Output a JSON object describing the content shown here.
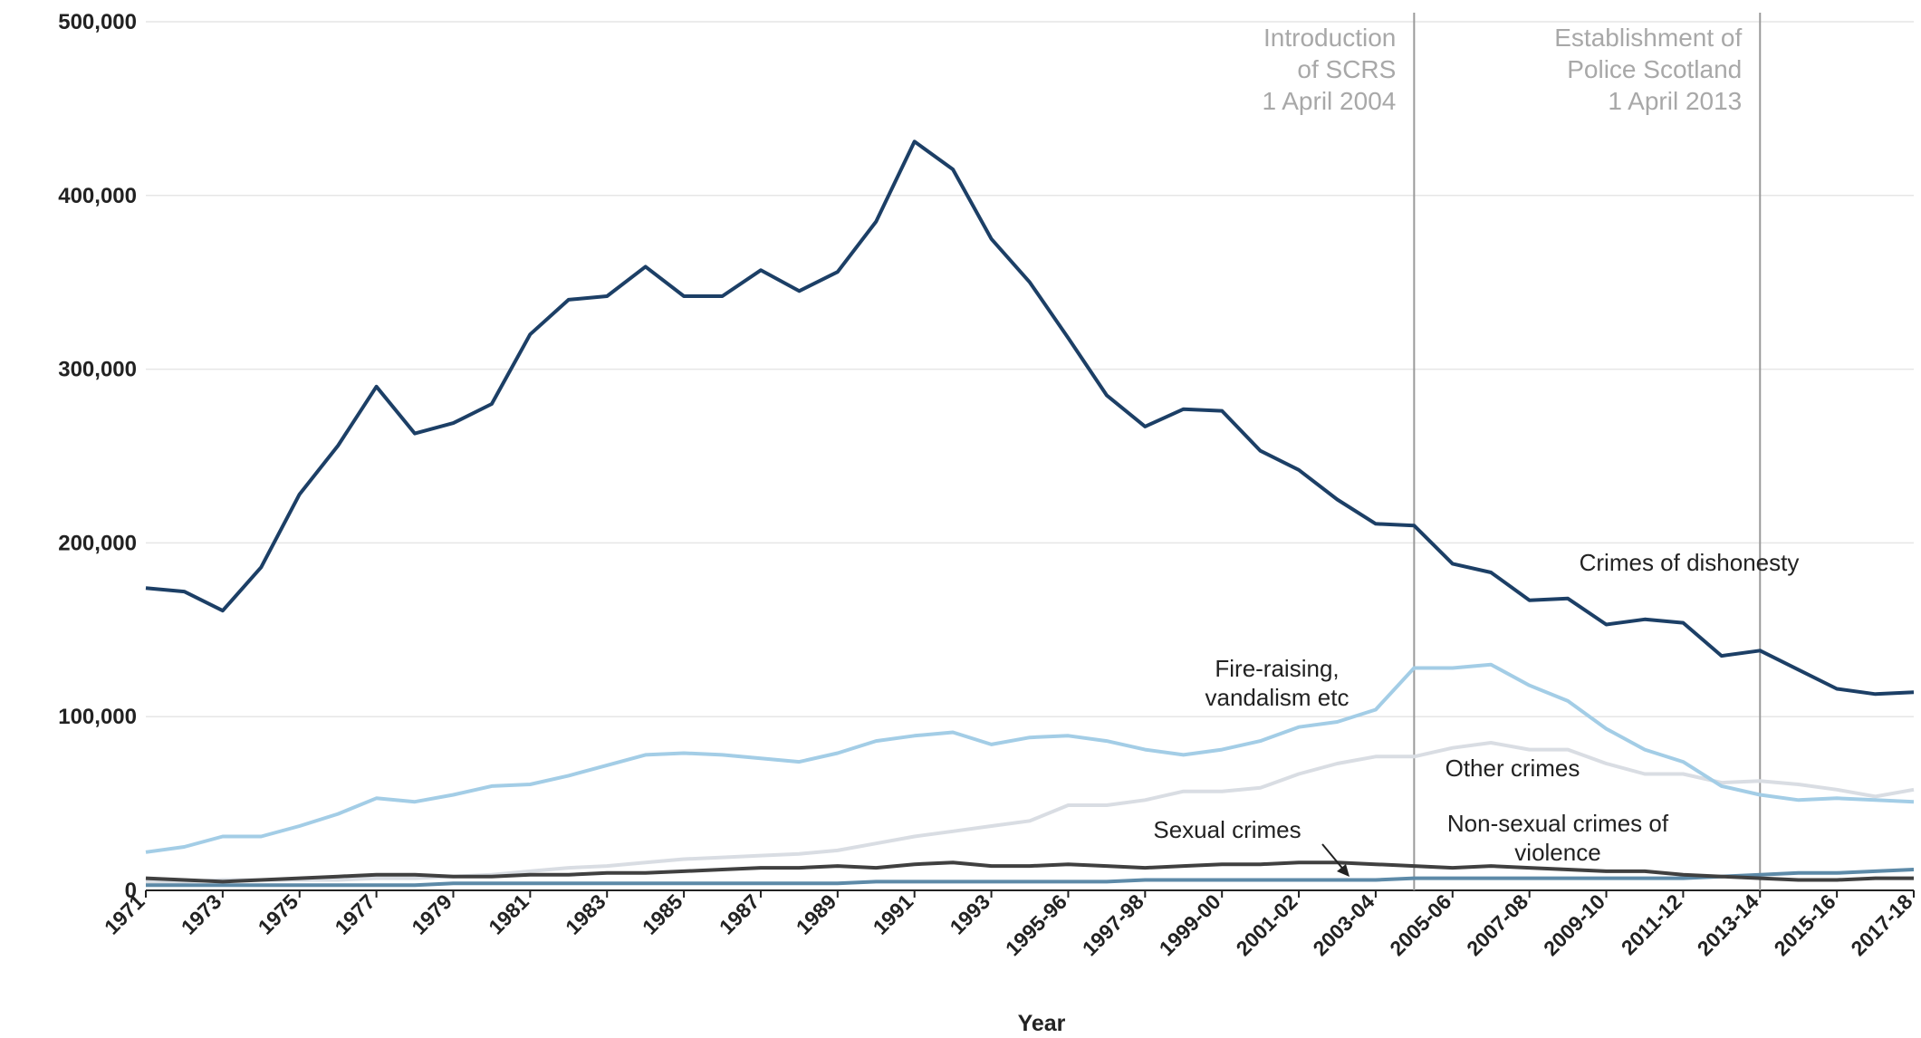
{
  "chart_data": {
    "type": "line",
    "xlabel": "Year",
    "categories": [
      "1971",
      null,
      "1973",
      null,
      "1975",
      null,
      "1977",
      null,
      "1979",
      null,
      "1981",
      null,
      "1983",
      null,
      "1985",
      null,
      "1987",
      null,
      "1989",
      null,
      "1991",
      null,
      "1993",
      null,
      "1995-96",
      null,
      "1997-98",
      null,
      "1999-00",
      null,
      "2001-02",
      null,
      "2003-04",
      null,
      "2005-06",
      null,
      "2007-08",
      null,
      "2009-10",
      null,
      "2011-12",
      null,
      "2013-14",
      null,
      "2015-16",
      null,
      "2017-18"
    ],
    "ylim": [
      0,
      500000
    ],
    "yticks": [
      0,
      {
        "value": 100000,
        "label": "100,000"
      },
      {
        "value": 200000,
        "label": "200,000"
      },
      {
        "value": 300000,
        "label": "300,000"
      },
      {
        "value": 400000,
        "label": "400,000"
      },
      {
        "value": 500000,
        "label": "500,000"
      }
    ],
    "grid": true,
    "series": [
      {
        "name": "Crimes of dishonesty",
        "color": "#1c3f66",
        "values": [
          174000,
          172000,
          161000,
          186000,
          228000,
          256000,
          290000,
          263000,
          269000,
          280000,
          320000,
          340000,
          342000,
          359000,
          342000,
          342000,
          357000,
          345000,
          356000,
          385000,
          431000,
          415000,
          375000,
          350000,
          318000,
          285000,
          267000,
          277000,
          276000,
          253000,
          242000,
          225000,
          211000,
          210000,
          188000,
          183000,
          167000,
          168000,
          153000,
          156000,
          154000,
          135000,
          138000,
          127000,
          116000,
          113000,
          114000
        ]
      },
      {
        "name": "Fire-raising, vandalism etc",
        "color": "#a3cde6",
        "values": [
          22000,
          25000,
          31000,
          31000,
          37000,
          44000,
          53000,
          51000,
          55000,
          60000,
          61000,
          66000,
          72000,
          78000,
          79000,
          78000,
          76000,
          74000,
          79000,
          86000,
          89000,
          91000,
          84000,
          88000,
          89000,
          86000,
          81000,
          78000,
          81000,
          86000,
          94000,
          97000,
          104000,
          128000,
          128000,
          130000,
          118000,
          109000,
          93000,
          81000,
          74000,
          60000,
          55000,
          52000,
          53000,
          52000,
          51000
        ]
      },
      {
        "name": "Other crimes",
        "color": "#d9dde3",
        "values": [
          5000,
          5000,
          6000,
          6000,
          6000,
          6000,
          7000,
          7000,
          8000,
          9000,
          11000,
          13000,
          14000,
          16000,
          18000,
          19000,
          20000,
          21000,
          23000,
          27000,
          31000,
          34000,
          37000,
          40000,
          49000,
          49000,
          52000,
          57000,
          57000,
          59000,
          67000,
          73000,
          77000,
          77000,
          82000,
          85000,
          81000,
          81000,
          73000,
          67000,
          67000,
          62000,
          63000,
          61000,
          58000,
          54000,
          58000
        ]
      },
      {
        "name": "Sexual crimes",
        "color": "#5d8aa8",
        "values": [
          3000,
          3000,
          3000,
          3000,
          3000,
          3000,
          3000,
          3000,
          4000,
          4000,
          4000,
          4000,
          4000,
          4000,
          4000,
          4000,
          4000,
          4000,
          4000,
          5000,
          5000,
          5000,
          5000,
          5000,
          5000,
          5000,
          6000,
          6000,
          6000,
          6000,
          6000,
          6000,
          6000,
          7000,
          7000,
          7000,
          7000,
          7000,
          7000,
          7000,
          7000,
          8000,
          9000,
          10000,
          10000,
          11000,
          12000
        ]
      },
      {
        "name": "Non-sexual crimes of violence",
        "color": "#404040",
        "values": [
          7000,
          6000,
          5000,
          6000,
          7000,
          8000,
          9000,
          9000,
          8000,
          8000,
          9000,
          9000,
          10000,
          10000,
          11000,
          12000,
          13000,
          13000,
          14000,
          13000,
          15000,
          16000,
          14000,
          14000,
          15000,
          14000,
          13000,
          14000,
          15000,
          15000,
          16000,
          16000,
          15000,
          14000,
          13000,
          14000,
          13000,
          12000,
          11000,
          11000,
          9000,
          8000,
          7000,
          6000,
          6000,
          7000,
          7000
        ]
      }
    ],
    "annotations": [
      {
        "x": 33,
        "lines": [
          "Introduction",
          "of SCRS",
          "1 April 2004"
        ]
      },
      {
        "x": 42,
        "lines": [
          "Establishment of",
          "Police Scotland",
          "1 April 2013"
        ]
      }
    ]
  }
}
